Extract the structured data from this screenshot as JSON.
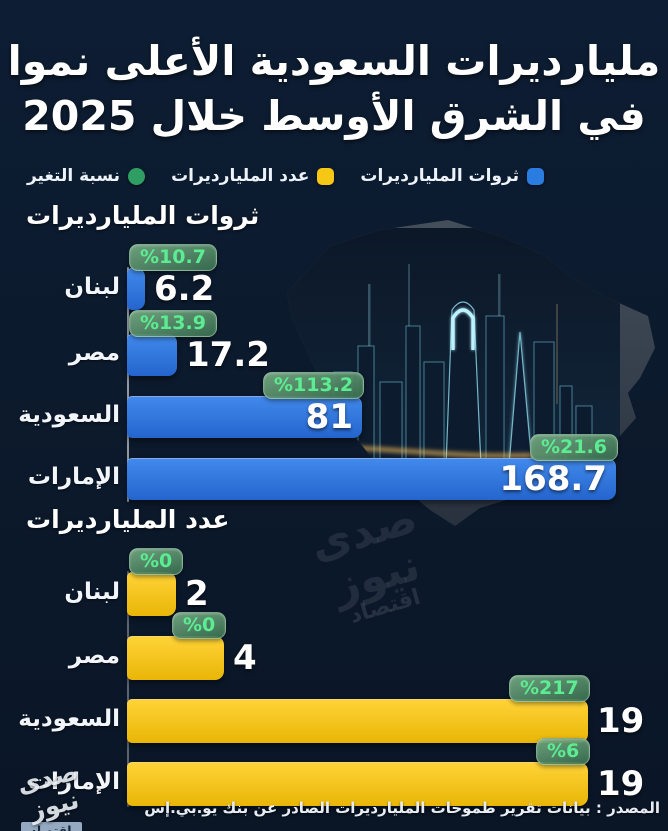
{
  "title": {
    "line1": "مليارديرات السعودية الأعلى نموا",
    "line2": "في الشرق الأوسط خلال 2025"
  },
  "legend": [
    {
      "label": "ثروات المليارديرات",
      "color": "#2b7ce0",
      "shape": "square"
    },
    {
      "label": "عدد المليارديرات",
      "color": "#f6c714",
      "shape": "square"
    },
    {
      "label": "نسبة التغير",
      "color": "#2f9e63",
      "shape": "circle"
    }
  ],
  "chart_data": [
    {
      "id": "wealth",
      "type": "bar",
      "orientation": "horizontal",
      "title": "ثروات المليارديرات",
      "categories": [
        "لبنان",
        "مصر",
        "السعودية",
        "الإمارات"
      ],
      "values": [
        6.2,
        17.2,
        81,
        168.7
      ],
      "change_percent": [
        "%10.7",
        "%13.9",
        "%113.2",
        "%21.6"
      ],
      "value_placement": [
        "out",
        "out",
        "in",
        "in"
      ],
      "xlim": [
        0,
        168.7
      ],
      "bar_color": "#2e7be0"
    },
    {
      "id": "count",
      "type": "bar",
      "orientation": "horizontal",
      "title": "عدد المليارديرات",
      "categories": [
        "لبنان",
        "مصر",
        "السعودية",
        "الإمارات"
      ],
      "values": [
        2,
        4,
        19,
        19
      ],
      "change_percent": [
        "%0",
        "%0",
        "%217",
        "%6"
      ],
      "value_placement": [
        "out",
        "out",
        "out",
        "out"
      ],
      "xlim": [
        0,
        19
      ],
      "bar_color": "#f6c714"
    }
  ],
  "colors": {
    "background": "#0c1a2d",
    "bar_blue": [
      "#4189ec",
      "#2465cd"
    ],
    "bar_yellow": [
      "#ffd337",
      "#e9b607"
    ],
    "badge_green": "#3e7254",
    "badge_text": "#5cec92"
  },
  "watermark": {
    "name": "صدى نيوز",
    "sub": "اقتصاد"
  },
  "source": {
    "text": "المصدر : بيانات تقرير طموحات المليارديرات الصادر عن بنك يو.بي.إس"
  }
}
